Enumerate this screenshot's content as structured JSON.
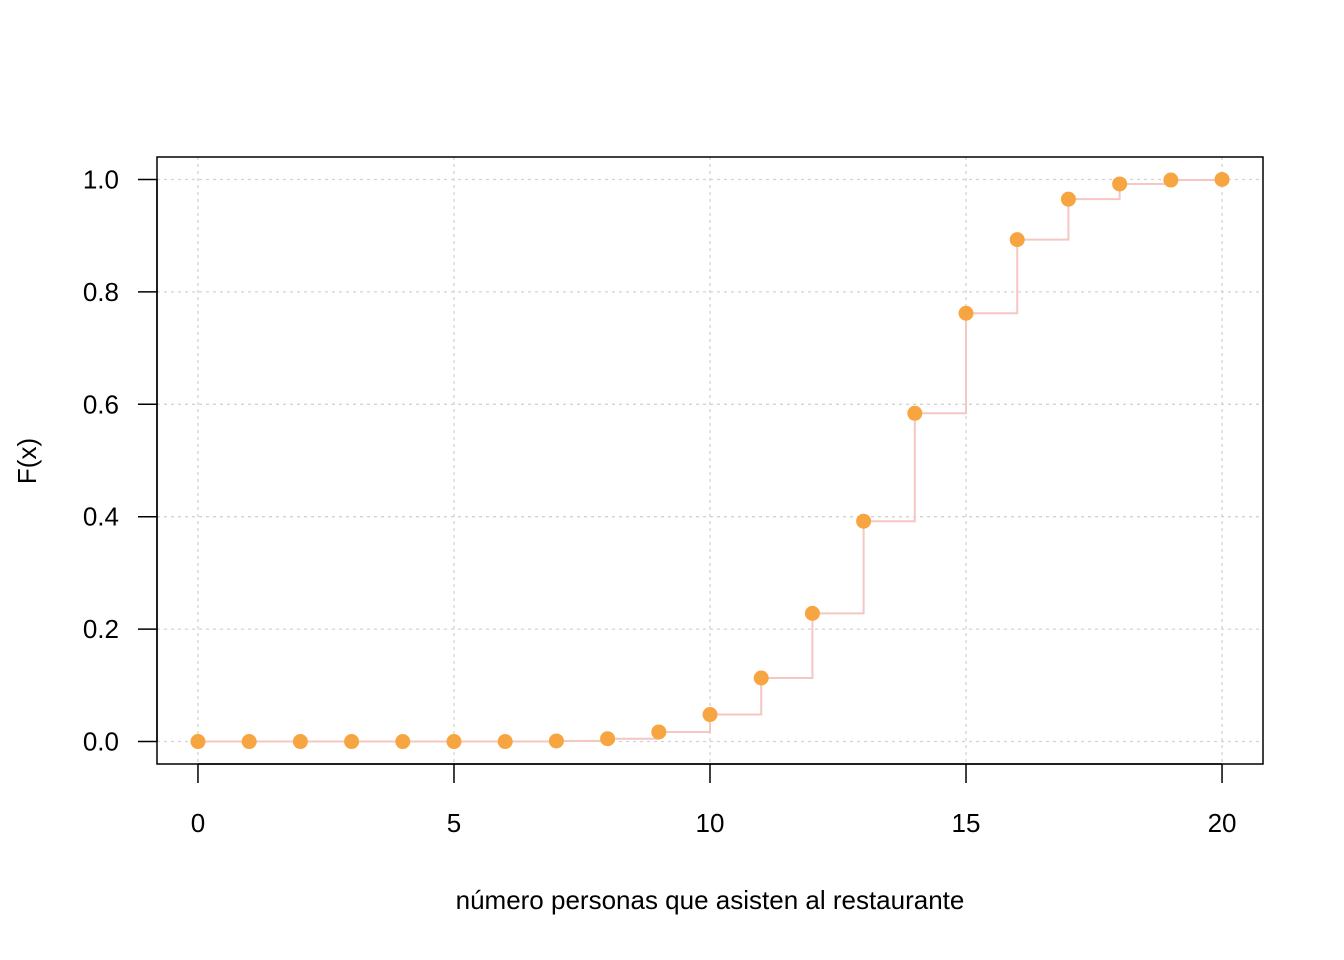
{
  "chart_data": {
    "type": "scatter",
    "title": "",
    "xlabel": "número personas que asisten al restaurante",
    "ylabel": "F(x)",
    "xlim": [
      -0.8,
      20.8
    ],
    "ylim": [
      -0.04,
      1.04
    ],
    "xticks": [
      0,
      5,
      10,
      15,
      20
    ],
    "yticks": [
      0.0,
      0.2,
      0.4,
      0.6,
      0.8,
      1.0
    ],
    "xtick_labels": [
      "0",
      "5",
      "10",
      "15",
      "20"
    ],
    "ytick_labels": [
      "0.0",
      "0.2",
      "0.4",
      "0.6",
      "0.8",
      "1.0"
    ],
    "grid": true,
    "legend": "none",
    "point_color": "#F7A541",
    "step_color": "#F4C7C3",
    "grid_color": "#D3D3D3",
    "series": [
      {
        "x": [
          0,
          1,
          2,
          3,
          4,
          5,
          6,
          7,
          8,
          9,
          10,
          11,
          12,
          13,
          14,
          15,
          16,
          17,
          18,
          19,
          20
        ],
        "y": [
          0.0,
          0.0,
          0.0,
          0.0,
          0.0,
          0.0,
          0.0,
          0.001,
          0.005,
          0.017,
          0.048,
          0.113,
          0.228,
          0.392,
          0.584,
          0.762,
          0.893,
          0.965,
          0.992,
          0.999,
          1.0
        ]
      }
    ]
  }
}
